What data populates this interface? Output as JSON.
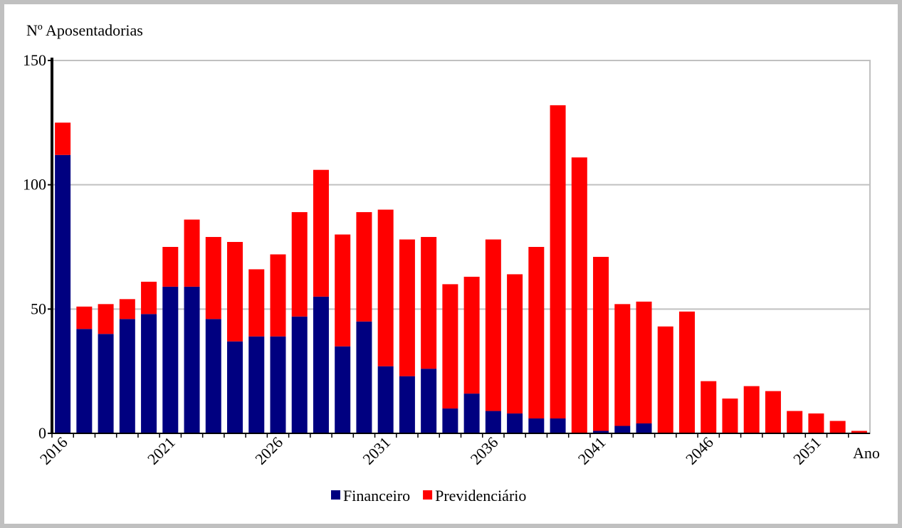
{
  "chart_data": {
    "type": "stacked_bar",
    "y_label": "Nº Aposentadorias",
    "x_label": "Ano",
    "categories": [
      "2016",
      null,
      null,
      null,
      null,
      "2021",
      null,
      null,
      null,
      null,
      "2026",
      null,
      null,
      null,
      null,
      "2031",
      null,
      null,
      null,
      null,
      "2036",
      null,
      null,
      null,
      null,
      "2041",
      null,
      null,
      null,
      null,
      "2046",
      null,
      null,
      null,
      null,
      "2051",
      null,
      null
    ],
    "series": [
      {
        "name": "Financeiro",
        "color": "#000080",
        "values": [
          112,
          42,
          40,
          46,
          48,
          59,
          59,
          46,
          37,
          39,
          39,
          47,
          55,
          35,
          45,
          27,
          23,
          26,
          10,
          16,
          9,
          8,
          6,
          6,
          0,
          1,
          3,
          4,
          0,
          0,
          0,
          0,
          0,
          0,
          0,
          0,
          0,
          0
        ]
      },
      {
        "name": "Previdenciário",
        "color": "#ff0000",
        "values": [
          13,
          9,
          12,
          8,
          13,
          16,
          27,
          33,
          40,
          27,
          33,
          42,
          51,
          45,
          44,
          63,
          55,
          53,
          50,
          47,
          69,
          56,
          69,
          126,
          111,
          70,
          49,
          49,
          43,
          49,
          21,
          14,
          19,
          17,
          9,
          8,
          5,
          1
        ]
      }
    ],
    "ylim": [
      0,
      150
    ],
    "yticks": [
      0,
      50,
      100,
      150
    ],
    "grid": true,
    "legend": "bottom"
  }
}
